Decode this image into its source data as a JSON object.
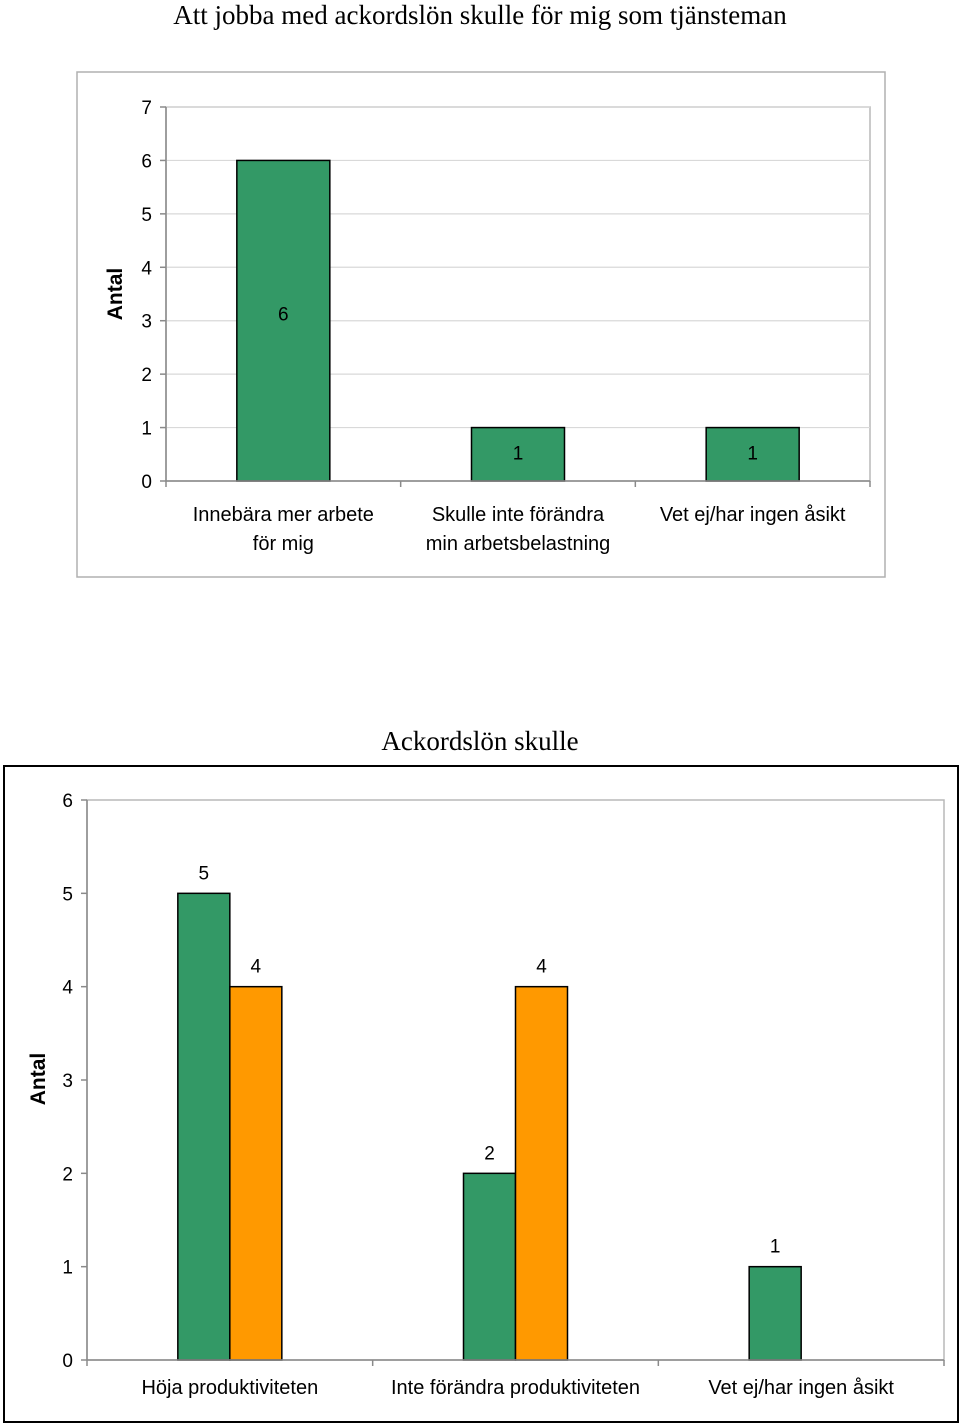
{
  "chart_data": [
    {
      "type": "bar",
      "title": "Att jobba med ackordslön skulle för mig som tjänsteman",
      "ylabel": "Antal",
      "ylim": [
        0,
        7
      ],
      "yticks": [
        "0",
        "1",
        "2",
        "3",
        "4",
        "5",
        "6",
        "7"
      ],
      "grid": true,
      "categories": [
        [
          "Innebära mer arbete",
          "för mig"
        ],
        [
          "Skulle inte förändra",
          "min arbetsbelastning"
        ],
        [
          "Vet ej/har ingen åsikt"
        ]
      ],
      "series": [
        {
          "values": [
            6,
            1,
            1
          ],
          "color": "#339966"
        }
      ]
    },
    {
      "type": "bar",
      "title": "Ackordslön skulle",
      "ylabel": "Antal",
      "ylim": [
        0,
        6
      ],
      "yticks": [
        "0",
        "1",
        "2",
        "3",
        "4",
        "5",
        "6"
      ],
      "grid": false,
      "categories": [
        [
          "Höja produktiviteten"
        ],
        [
          "Inte förändra produktiviteten"
        ],
        [
          "Vet ej/har ingen åsikt"
        ]
      ],
      "series": [
        {
          "values": [
            5,
            2,
            1
          ],
          "color": "#339966"
        },
        {
          "values": [
            4,
            4,
            null
          ],
          "color": "#FF9900"
        }
      ]
    }
  ]
}
